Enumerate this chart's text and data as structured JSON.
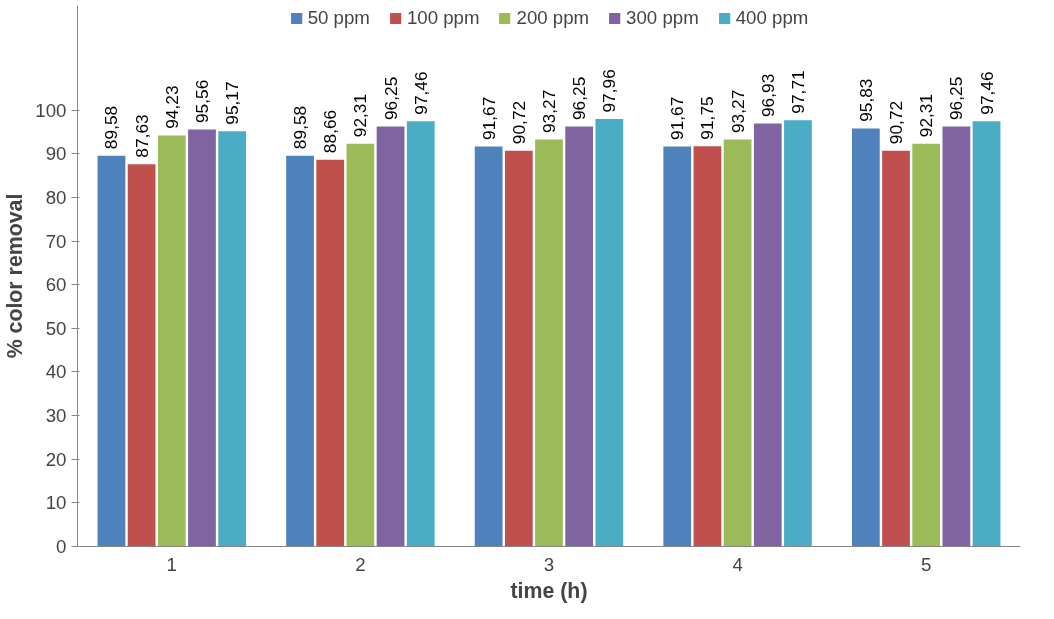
{
  "chart_data": {
    "type": "bar",
    "xlabel": "time (h)",
    "ylabel": "% color removal",
    "categories": [
      "1",
      "2",
      "3",
      "4",
      "5"
    ],
    "ylim": [
      0,
      124
    ],
    "yticks": [
      0,
      10,
      20,
      30,
      40,
      50,
      60,
      70,
      80,
      90,
      100
    ],
    "grid": false,
    "legend": "top",
    "series": [
      {
        "name": "50 ppm",
        "color": "#4f81bd",
        "values": [
          89.58,
          89.58,
          91.67,
          91.67,
          95.83
        ],
        "value_labels": [
          "89,58",
          "89,58",
          "91,67",
          "91,67",
          "95,83"
        ]
      },
      {
        "name": "100 ppm",
        "color": "#c0504d",
        "values": [
          87.63,
          88.66,
          90.72,
          91.75,
          90.72
        ],
        "value_labels": [
          "87,63",
          "88,66",
          "90,72",
          "91,75",
          "90,72"
        ]
      },
      {
        "name": "200 ppm",
        "color": "#9bbb59",
        "values": [
          94.23,
          92.31,
          93.27,
          93.27,
          92.31
        ],
        "value_labels": [
          "94,23",
          "92,31",
          "93,27",
          "93,27",
          "92,31"
        ]
      },
      {
        "name": "300 ppm",
        "color": "#8064a2",
        "values": [
          95.56,
          96.25,
          96.25,
          96.93,
          96.25
        ],
        "value_labels": [
          "95,56",
          "96,25",
          "96,25",
          "96,93",
          "96,25"
        ]
      },
      {
        "name": "400 ppm",
        "color": "#4bacc6",
        "values": [
          95.17,
          97.46,
          97.96,
          97.71,
          97.46
        ],
        "value_labels": [
          "95,17",
          "97,46",
          "97,96",
          "97,71",
          "97,46"
        ]
      }
    ]
  }
}
